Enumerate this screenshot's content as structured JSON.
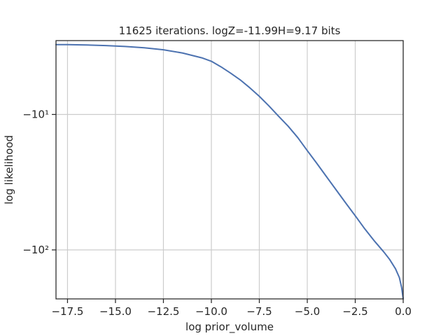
{
  "chart_data": {
    "type": "line",
    "title": "11625 iterations. logZ=-11.99H=9.17 bits",
    "xlabel": "log prior_volume",
    "ylabel": "log likelihood",
    "xlim": [
      -18.1,
      0.0
    ],
    "yscale": "symlog",
    "ylim": [
      -230,
      -2.85
    ],
    "grid": true,
    "legend": "none",
    "colors": {
      "series": "#4c72b0",
      "grid": "#cccccc",
      "frame": "#262626"
    },
    "x_ticks": [
      -17.5,
      -15.0,
      -12.5,
      -10.0,
      -7.5,
      -5.0,
      -2.5,
      0.0
    ],
    "x_tick_labels": [
      "−17.5",
      "−15.0",
      "−12.5",
      "−10.0",
      "−7.5",
      "−5.0",
      "−2.5",
      "0.0"
    ],
    "y_ticks": [
      -10,
      -100
    ],
    "y_tick_labels": [
      "−10¹",
      "−10²"
    ],
    "series": [
      {
        "x": [
          -18.1,
          -17.5,
          -16.5,
          -15.5,
          -14.5,
          -13.5,
          -12.5,
          -11.5,
          -10.5,
          -10.0,
          -9.5,
          -9.0,
          -8.5,
          -8.0,
          -7.5,
          -7.0,
          -6.5,
          -6.0,
          -5.5,
          -5.0,
          -4.5,
          -4.0,
          -3.5,
          -3.0,
          -2.5,
          -2.0,
          -1.5,
          -1.0,
          -0.7,
          -0.4,
          -0.2,
          -0.08,
          0.0
        ],
        "y": [
          -3.05,
          -3.05,
          -3.07,
          -3.1,
          -3.15,
          -3.22,
          -3.33,
          -3.52,
          -3.82,
          -4.05,
          -4.45,
          -4.95,
          -5.55,
          -6.35,
          -7.35,
          -8.65,
          -10.3,
          -12.2,
          -14.8,
          -18.5,
          -23.0,
          -28.8,
          -36.0,
          -45.0,
          -56.0,
          -70.0,
          -86.0,
          -104.0,
          -118.0,
          -138.0,
          -160.0,
          -190.0,
          -230.0
        ]
      }
    ]
  }
}
